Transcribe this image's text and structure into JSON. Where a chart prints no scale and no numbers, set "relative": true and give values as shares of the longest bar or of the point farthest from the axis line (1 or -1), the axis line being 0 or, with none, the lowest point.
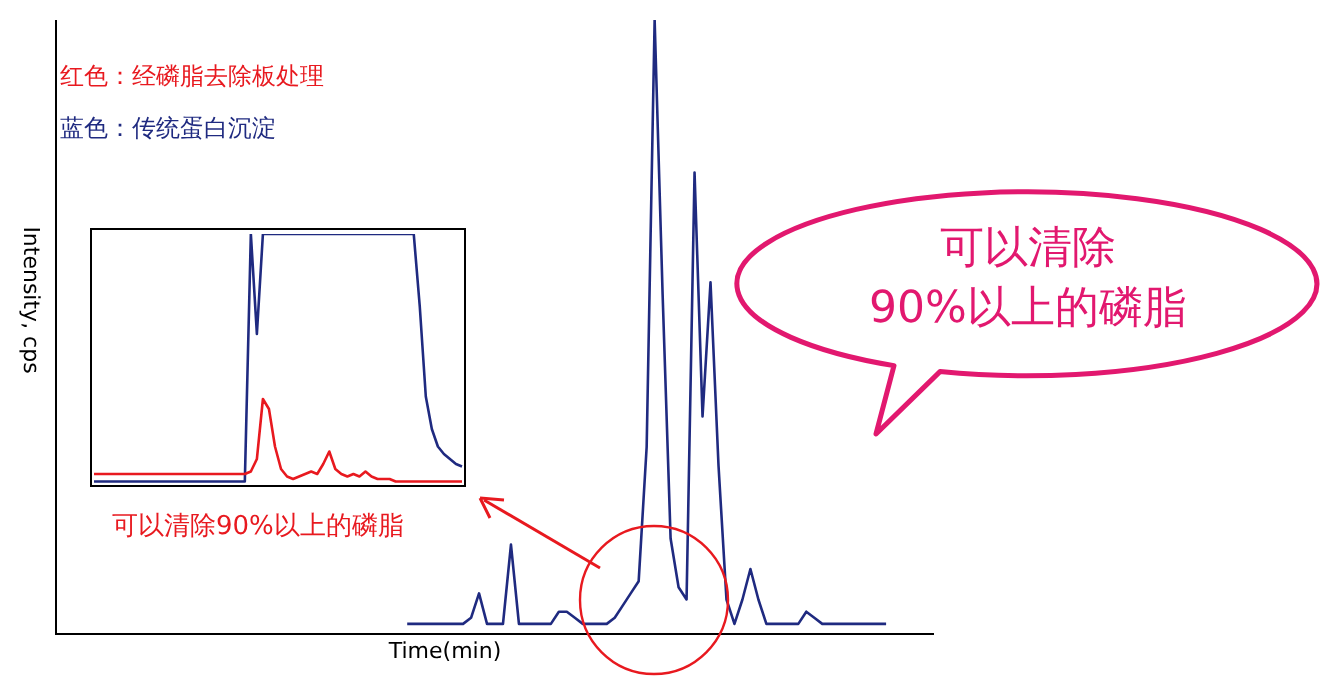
{
  "chart_data": [
    {
      "type": "line",
      "relative": true,
      "xlabel": "Time(min)",
      "ylabel": "Intensity, cps",
      "annotations": [
        "可以清除\n90%以上的磷脂"
      ],
      "categories": [
        null,
        null,
        null,
        null,
        null,
        null,
        null,
        null,
        null,
        null,
        null,
        null,
        null,
        null,
        null,
        null,
        null,
        null,
        null,
        null,
        null,
        null,
        null,
        null,
        null,
        null,
        null,
        null,
        null,
        null,
        null,
        null,
        null,
        null,
        null,
        null,
        null,
        null,
        null,
        null,
        null,
        null,
        null,
        null,
        null,
        null,
        null,
        null,
        null,
        null,
        null,
        null,
        null,
        null,
        null,
        null,
        null,
        null,
        null,
        null,
        null,
        null,
        null,
        null,
        null,
        null,
        null,
        null,
        null,
        null,
        null,
        null,
        null,
        null,
        null,
        null,
        null,
        null,
        null,
        null,
        null,
        null,
        null,
        null,
        null,
        null,
        null,
        null,
        null,
        null,
        null,
        null,
        null,
        null,
        null,
        null,
        null,
        null,
        null,
        null,
        null,
        null,
        null,
        null,
        null,
        null,
        null,
        null,
        null,
        null,
        null
      ],
      "series": [
        {
          "color": "#1f2a80",
          "values": [
            null,
            null,
            null,
            null,
            null,
            null,
            null,
            null,
            null,
            null,
            null,
            null,
            null,
            null,
            null,
            null,
            null,
            null,
            null,
            null,
            null,
            null,
            null,
            null,
            null,
            null,
            null,
            null,
            null,
            null,
            null,
            null,
            null,
            null,
            null,
            null,
            null,
            null,
            null,
            null,
            null,
            null,
            null,
            null,
            0.01,
            0.01,
            0.01,
            0.01,
            0.01,
            0.01,
            0.01,
            0.01,
            0.02,
            0.06,
            0.01,
            0.01,
            0.01,
            0.14,
            0.01,
            0.01,
            0.01,
            0.01,
            0.01,
            0.03,
            0.03,
            0.02,
            0.01,
            0.01,
            0.01,
            0.01,
            0.02,
            0.04,
            0.06,
            0.08,
            0.3,
            1,
            0.55,
            0.15,
            0.07,
            0.05,
            0.75,
            0.35,
            0.57,
            0.27,
            0.05,
            0.01,
            0.05,
            0.1,
            0.05,
            0.01,
            0.01,
            0.01,
            0.01,
            0.01,
            0.03,
            0.02,
            0.01,
            0.01,
            0.01,
            0.01,
            0.01,
            0.01,
            0.01,
            0.01,
            0.01,
            null,
            null,
            null,
            null,
            null,
            null
          ]
        }
      ]
    },
    {
      "type": "line",
      "relative": true,
      "annotations": [
        "可以清除90%以上的磷脂"
      ],
      "categories": [
        null,
        null,
        null,
        null,
        null,
        null,
        null,
        null,
        null,
        null,
        null,
        null,
        null,
        null,
        null,
        null,
        null,
        null,
        null,
        null,
        null,
        null,
        null,
        null,
        null,
        null,
        null,
        null,
        null,
        null,
        null,
        null,
        null,
        null,
        null,
        null,
        null,
        null,
        null,
        null,
        null,
        null,
        null,
        null,
        null,
        null,
        null,
        null,
        null,
        null,
        null,
        null,
        null,
        null,
        null,
        null,
        null,
        null,
        null,
        null,
        null,
        null
      ],
      "series": [
        {
          "name": "红色：经磷脂去除板处理",
          "color": "#e8191f",
          "values": [
            0.04,
            0.04,
            0.04,
            0.04,
            0.04,
            0.04,
            0.04,
            0.04,
            0.04,
            0.04,
            0.04,
            0.04,
            0.04,
            0.04,
            0.04,
            0.04,
            0.04,
            0.04,
            0.04,
            0.04,
            0.04,
            0.04,
            0.04,
            0.04,
            0.04,
            0.04,
            0.05,
            0.1,
            0.34,
            0.3,
            0.15,
            0.06,
            0.03,
            0.02,
            0.03,
            0.04,
            0.05,
            0.04,
            0.08,
            0.13,
            0.06,
            0.04,
            0.03,
            0.04,
            0.03,
            0.05,
            0.03,
            0.02,
            0.02,
            0.02,
            0.01,
            0.01,
            0.01,
            0.01,
            0.01,
            0.01,
            0.01,
            0.01,
            0.01,
            0.01,
            0.01,
            0.01
          ]
        },
        {
          "name": "蓝色：传统蛋白沉淀",
          "color": "#1f2a80",
          "values": [
            0.01,
            0.01,
            0.01,
            0.01,
            0.01,
            0.01,
            0.01,
            0.01,
            0.01,
            0.01,
            0.01,
            0.01,
            0.01,
            0.01,
            0.01,
            0.01,
            0.01,
            0.01,
            0.01,
            0.01,
            0.01,
            0.01,
            0.01,
            0.01,
            0.01,
            0.01,
            1,
            0.6,
            1,
            1,
            1,
            1,
            1,
            1,
            1,
            1,
            1,
            1,
            1,
            1,
            1,
            1,
            1,
            1,
            1,
            1,
            1,
            1,
            1,
            1,
            1,
            1,
            1,
            1,
            0.71,
            0.35,
            0.22,
            0.15,
            0.12,
            0.1,
            0.08,
            0.07
          ]
        }
      ]
    }
  ]
}
